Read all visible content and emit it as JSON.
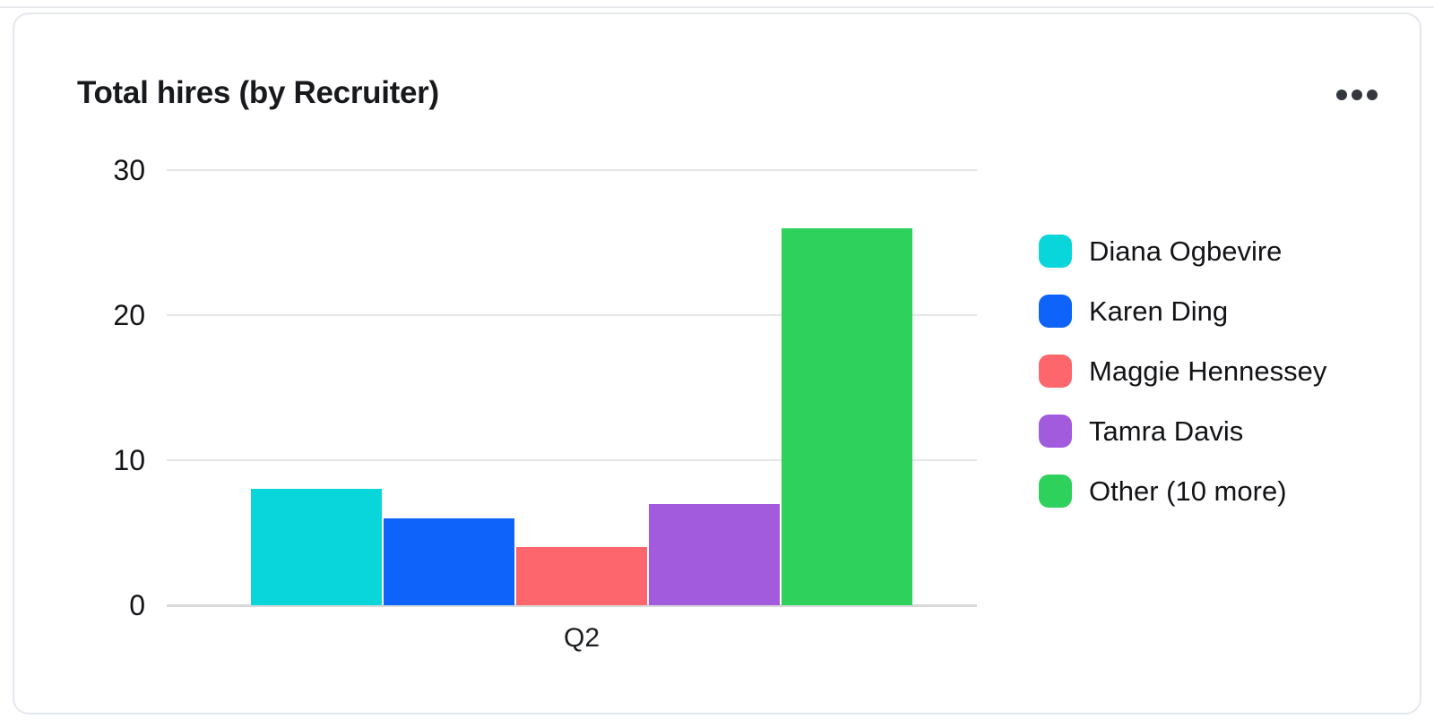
{
  "card": {
    "title": "Total hires (by Recruiter)"
  },
  "icons": {
    "more_menu": "ellipsis-horizontal"
  },
  "chart_data": {
    "type": "bar",
    "title": "Total hires (by Recruiter)",
    "categories": [
      "Q2"
    ],
    "series": [
      {
        "name": "Diana Ogbevire",
        "color": "#09d6da",
        "values": [
          8
        ]
      },
      {
        "name": "Karen Ding",
        "color": "#0e63fa",
        "values": [
          6
        ]
      },
      {
        "name": "Maggie Hennessey",
        "color": "#fd666c",
        "values": [
          4
        ]
      },
      {
        "name": "Tamra Davis",
        "color": "#a35bde",
        "values": [
          7
        ]
      },
      {
        "name": "Other (10 more)",
        "color": "#2ed15b",
        "values": [
          26
        ]
      }
    ],
    "xlabel": "",
    "ylabel": "",
    "y_ticks": [
      0,
      10,
      20,
      30
    ],
    "ylim": [
      0,
      30
    ],
    "grid": true,
    "legend_position": "right"
  }
}
